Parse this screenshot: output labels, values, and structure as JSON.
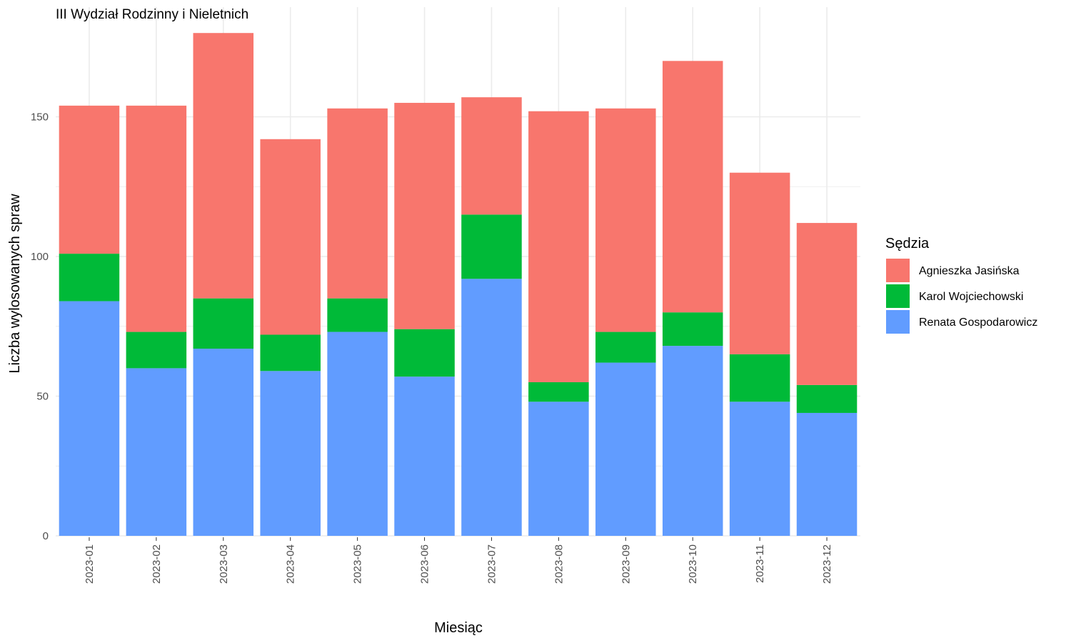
{
  "chart_data": {
    "type": "bar",
    "stacked": true,
    "title": "III Wydział Rodzinny i Nieletnich",
    "xlabel": "Miesiąc",
    "ylabel": "Liczba wylosowanych spraw",
    "ylim": [
      0,
      180
    ],
    "yticks": [
      0,
      50,
      100,
      150
    ],
    "grid": true,
    "legend_title": "Sędzia",
    "legend_position": "right",
    "categories": [
      "2023-01",
      "2023-02",
      "2023-03",
      "2023-04",
      "2023-05",
      "2023-06",
      "2023-07",
      "2023-08",
      "2023-09",
      "2023-10",
      "2023-11",
      "2023-12"
    ],
    "series": [
      {
        "name": "Renata Gospodarowicz",
        "color": "#619CFF",
        "values": [
          84,
          60,
          67,
          59,
          73,
          57,
          92,
          48,
          62,
          68,
          48,
          44
        ]
      },
      {
        "name": "Karol Wojciechowski",
        "color": "#00BA38",
        "values": [
          17,
          13,
          18,
          13,
          12,
          17,
          23,
          7,
          11,
          12,
          17,
          10
        ]
      },
      {
        "name": "Agnieszka Jasińska",
        "color": "#F8766D",
        "values": [
          53,
          81,
          95,
          70,
          68,
          81,
          42,
          97,
          80,
          90,
          65,
          58
        ]
      }
    ],
    "legend_order": [
      "Agnieszka Jasińska",
      "Karol Wojciechowski",
      "Renata Gospodarowicz"
    ]
  }
}
